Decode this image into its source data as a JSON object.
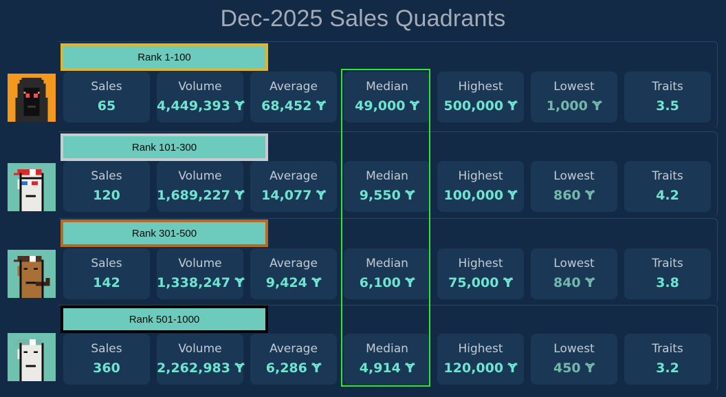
{
  "title": "Dec-2025 Sales Quadrants",
  "currency_symbol": "Ɏ",
  "colors": {
    "background": "#132a47",
    "card": "#1a3856",
    "value": "#6ee6cf",
    "lowest_value": "#73b8aa",
    "badge_fill": "#6ccbbd",
    "median_highlight": "#2ee82e"
  },
  "labels": {
    "sales": "Sales",
    "volume": "Volume",
    "average": "Average",
    "median": "Median",
    "highest": "Highest",
    "lowest": "Lowest",
    "traits": "Traits"
  },
  "tiers": [
    {
      "rank": "Rank 1-100",
      "border_color": "#e0b52a",
      "avatar": "hooded-punk-icon",
      "sales": "65",
      "volume": "4,449,393 Ɏ",
      "average": "68,452 Ɏ",
      "median": "49,000 Ɏ",
      "highest": "500,000 Ɏ",
      "lowest": "1,000 Ɏ",
      "traits": "3.5"
    },
    {
      "rank": "Rank 101-300",
      "border_color": "#c8ccd0",
      "avatar": "cap-3d-glasses-punk-icon",
      "sales": "120",
      "volume": "1,689,227 Ɏ",
      "average": "14,077 Ɏ",
      "median": "9,550 Ɏ",
      "highest": "100,000 Ɏ",
      "lowest": "860 Ɏ",
      "traits": "4.2"
    },
    {
      "rank": "Rank 301-500",
      "border_color": "#b86a22",
      "avatar": "cap-pipe-punk-icon",
      "sales": "142",
      "volume": "1,338,247 Ɏ",
      "average": "9,424 Ɏ",
      "median": "6,100 Ɏ",
      "highest": "75,000 Ɏ",
      "lowest": "840 Ɏ",
      "traits": "3.8"
    },
    {
      "rank": "Rank 501-1000",
      "border_color": "#000000",
      "avatar": "cap-punk-icon",
      "sales": "360",
      "volume": "2,262,983 Ɏ",
      "average": "6,286 Ɏ",
      "median": "4,914 Ɏ",
      "highest": "120,000 Ɏ",
      "lowest": "450 Ɏ",
      "traits": "3.2"
    }
  ]
}
